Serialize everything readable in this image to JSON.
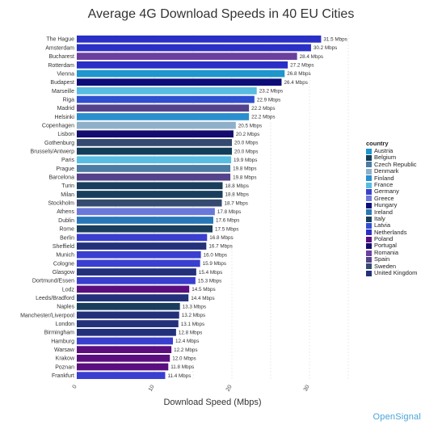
{
  "title": "Average 4G Download Speeds in 40 EU Cities",
  "brand": "OpenSignal",
  "chart_data": {
    "type": "bar",
    "orientation": "horizontal",
    "title": "Average 4G Download Speeds in 40 EU Cities",
    "xlabel": "Download Speed (Mbps)",
    "ylabel": "",
    "xlim": [
      0,
      35
    ],
    "xticks": [
      0,
      10,
      20,
      30
    ],
    "grid": true,
    "legend_title": "country",
    "legend_position": "right",
    "value_suffix": " Mbps",
    "countries": [
      {
        "name": "Austria",
        "color": "#1f96cc"
      },
      {
        "name": "Belgium",
        "color": "#123e5a"
      },
      {
        "name": "Czech Republic",
        "color": "#4c7ba3"
      },
      {
        "name": "Denmark",
        "color": "#8fb0c9"
      },
      {
        "name": "Finland",
        "color": "#2a8fce"
      },
      {
        "name": "France",
        "color": "#58bde0"
      },
      {
        "name": "Germany",
        "color": "#3a3fcf"
      },
      {
        "name": "Greece",
        "color": "#6b78da"
      },
      {
        "name": "Hungary",
        "color": "#0d0d78"
      },
      {
        "name": "Ireland",
        "color": "#2878b8"
      },
      {
        "name": "Italy",
        "color": "#193e5d"
      },
      {
        "name": "Latvia",
        "color": "#2f4fd0"
      },
      {
        "name": "Netherlands",
        "color": "#2a30c6"
      },
      {
        "name": "Poland",
        "color": "#5b0f7f"
      },
      {
        "name": "Portugal",
        "color": "#140c6e"
      },
      {
        "name": "Romania",
        "color": "#6b3f9d"
      },
      {
        "name": "Spain",
        "color": "#54428c"
      },
      {
        "name": "Sweden",
        "color": "#354a70"
      },
      {
        "name": "United Kingdom",
        "color": "#23307a"
      }
    ],
    "categories": [
      "The Hague",
      "Amsterdam",
      "Bucharest",
      "Rotterdam",
      "Vienna",
      "Budapest",
      "Marseille",
      "Riga",
      "Madrid",
      "Helsinki",
      "Copenhagen",
      "Lisbon",
      "Gothenburg",
      "Brussels/Antwerp",
      "Paris",
      "Prague",
      "Barcelona",
      "Turin",
      "Milan",
      "Stockholm",
      "Athens",
      "Dublin",
      "Rome",
      "Berlin",
      "Sheffield",
      "Munich",
      "Cologne",
      "Glasgow",
      "Dortmund/Essen",
      "Lodz",
      "Leeds/Bradford",
      "Naples",
      "Manchester/Liverpool",
      "London",
      "Birmingham",
      "Hamburg",
      "Warsaw",
      "Krakow",
      "Poznan",
      "Frankfurt"
    ],
    "values": [
      31.5,
      30.2,
      28.4,
      27.2,
      26.8,
      26.4,
      23.2,
      22.9,
      22.2,
      22.2,
      20.5,
      20.2,
      20.0,
      20.0,
      19.9,
      19.8,
      19.8,
      18.8,
      18.8,
      18.7,
      17.8,
      17.6,
      17.5,
      16.8,
      16.7,
      16.0,
      15.9,
      15.4,
      15.3,
      14.5,
      14.4,
      13.3,
      13.2,
      13.1,
      12.8,
      12.4,
      12.2,
      12.0,
      11.8,
      11.4
    ],
    "bar_country": [
      "Netherlands",
      "Netherlands",
      "Romania",
      "Netherlands",
      "Austria",
      "Hungary",
      "France",
      "Latvia",
      "Spain",
      "Finland",
      "Denmark",
      "Portugal",
      "Sweden",
      "Belgium",
      "France",
      "Czech Republic",
      "Spain",
      "Italy",
      "Italy",
      "Sweden",
      "Greece",
      "Ireland",
      "Italy",
      "Germany",
      "United Kingdom",
      "Germany",
      "Germany",
      "United Kingdom",
      "Germany",
      "Poland",
      "United Kingdom",
      "Italy",
      "United Kingdom",
      "United Kingdom",
      "United Kingdom",
      "Germany",
      "Poland",
      "Poland",
      "Poland",
      "Germany"
    ]
  }
}
